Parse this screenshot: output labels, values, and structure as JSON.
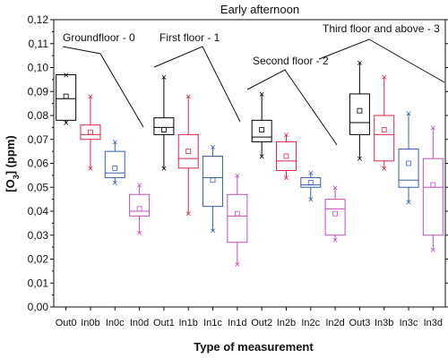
{
  "chart_data": {
    "type": "box",
    "title": "Early afternoon",
    "xlabel": "Type of measurement",
    "ylabel": "[O3] (ppm)",
    "ylabel_main": "[O",
    "ylabel_sub": "3",
    "ylabel_rest": "] (ppm)",
    "ylim": [
      0,
      0.12
    ],
    "yticks": [
      "0,00",
      "0,01",
      "0,02",
      "0,03",
      "0,04",
      "0,05",
      "0,06",
      "0,07",
      "0,08",
      "0,09",
      "0,10",
      "0,11",
      "0,12"
    ],
    "categories": [
      "Out0",
      "In0b",
      "In0c",
      "In0d",
      "Out1",
      "In1b",
      "In1c",
      "In1d",
      "Out2",
      "In2b",
      "In2c",
      "In2d",
      "Out3",
      "In3b",
      "In3c",
      "In3d"
    ],
    "colors": [
      "#000000",
      "#e0234a",
      "#3b5fa8",
      "#c04ec0"
    ],
    "boxes": [
      {
        "category": "Out0",
        "min": 0.077,
        "q1": 0.078,
        "median": 0.087,
        "q3": 0.097,
        "max": 0.097,
        "mean": 0.088
      },
      {
        "category": "In0b",
        "min": 0.058,
        "q1": 0.07,
        "median": 0.072,
        "q3": 0.076,
        "max": 0.088,
        "mean": 0.073
      },
      {
        "category": "In0c",
        "min": 0.052,
        "q1": 0.054,
        "median": 0.056,
        "q3": 0.065,
        "max": 0.069,
        "mean": 0.058
      },
      {
        "category": "In0d",
        "min": 0.031,
        "q1": 0.038,
        "median": 0.04,
        "q3": 0.047,
        "max": 0.051,
        "mean": 0.041
      },
      {
        "category": "Out1",
        "min": 0.058,
        "q1": 0.072,
        "median": 0.075,
        "q3": 0.079,
        "max": 0.096,
        "mean": 0.074
      },
      {
        "category": "In1b",
        "min": 0.039,
        "q1": 0.058,
        "median": 0.062,
        "q3": 0.072,
        "max": 0.088,
        "mean": 0.065
      },
      {
        "category": "In1c",
        "min": 0.032,
        "q1": 0.042,
        "median": 0.054,
        "q3": 0.063,
        "max": 0.067,
        "mean": 0.053
      },
      {
        "category": "In1d",
        "min": 0.018,
        "q1": 0.027,
        "median": 0.038,
        "q3": 0.047,
        "max": 0.055,
        "mean": 0.039
      },
      {
        "category": "Out2",
        "min": 0.063,
        "q1": 0.069,
        "median": 0.071,
        "q3": 0.078,
        "max": 0.089,
        "mean": 0.074
      },
      {
        "category": "In2b",
        "min": 0.054,
        "q1": 0.057,
        "median": 0.061,
        "q3": 0.069,
        "max": 0.072,
        "mean": 0.063
      },
      {
        "category": "In2c",
        "min": 0.045,
        "q1": 0.05,
        "median": 0.051,
        "q3": 0.054,
        "max": 0.056,
        "mean": 0.052
      },
      {
        "category": "In2d",
        "min": 0.028,
        "q1": 0.03,
        "median": 0.041,
        "q3": 0.045,
        "max": 0.05,
        "mean": 0.039
      },
      {
        "category": "Out3",
        "min": 0.062,
        "q1": 0.072,
        "median": 0.077,
        "q3": 0.089,
        "max": 0.102,
        "mean": 0.082
      },
      {
        "category": "In3b",
        "min": 0.058,
        "q1": 0.061,
        "median": 0.072,
        "q3": 0.08,
        "max": 0.096,
        "mean": 0.074
      },
      {
        "category": "In3c",
        "min": 0.044,
        "q1": 0.05,
        "median": 0.053,
        "q3": 0.066,
        "max": 0.081,
        "mean": 0.06
      },
      {
        "category": "In3d",
        "min": 0.024,
        "q1": 0.03,
        "median": 0.05,
        "q3": 0.062,
        "max": 0.075,
        "mean": 0.051
      }
    ],
    "annotations": [
      {
        "text": "Groundfloor - 0",
        "group_start": 0
      },
      {
        "text": "First floor - 1",
        "group_start": 4
      },
      {
        "text": "Second floor - 2",
        "group_start": 8
      },
      {
        "text": "Third floor and above - 3",
        "group_start": 12
      }
    ]
  }
}
